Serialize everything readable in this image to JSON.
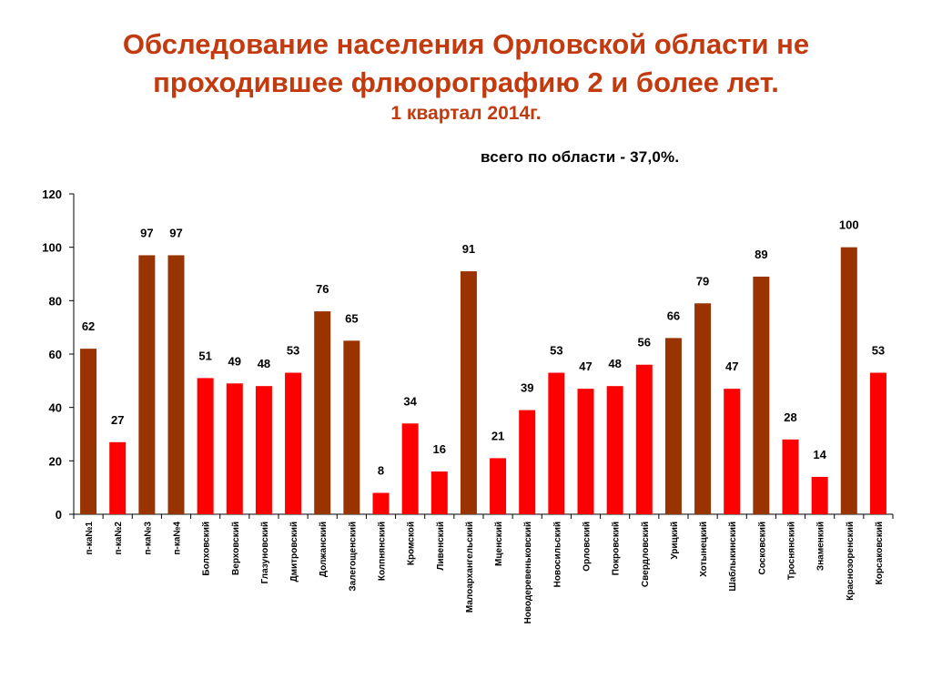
{
  "chart_data": {
    "type": "bar",
    "title_lines": [
      "Обследование населения Орловской области не",
      "проходившее флюорографию 2 и более лет."
    ],
    "subtitle": "1 квартал 2014г.",
    "annotation": "всего по области - 37,0%.",
    "categories": [
      "п-ка№1",
      "п-ка№2",
      "п-ка№3",
      "п-ка№4",
      "Болховский",
      "Верховский",
      "Глазуновский",
      "Дмитровский",
      "Должанский",
      "Залегощенский",
      "Колпнянский",
      "Кромской",
      "Ливенский",
      "Малоархангельский",
      "Мценский",
      "Новодеревеньковский",
      "Новосильский",
      "Орловский",
      "Покровский",
      "Свердловский",
      "Урицкий",
      "Хотынецкий",
      "Шаблыкинский",
      "Сосковский",
      "Троснянский",
      "Знаменкий",
      "Краснозоренский",
      "Корсаковский"
    ],
    "values": [
      62,
      27,
      97,
      97,
      51,
      49,
      48,
      53,
      76,
      65,
      8,
      34,
      16,
      91,
      21,
      39,
      53,
      47,
      48,
      56,
      66,
      79,
      47,
      89,
      28,
      14,
      100,
      53
    ],
    "value_labels": [
      "62",
      "27",
      "97",
      "97",
      "51",
      "49",
      "48",
      "53",
      "76",
      "65",
      "8",
      "34",
      "16",
      "91",
      "21",
      "39",
      "53",
      "47",
      "48",
      "56",
      "66",
      "79",
      "47",
      "89",
      "28",
      "14",
      "100",
      "53"
    ],
    "bar_tone": [
      "high",
      "low",
      "high",
      "high",
      "low",
      "low",
      "low",
      "low",
      "high",
      "high",
      "low",
      "low",
      "low",
      "high",
      "low",
      "low",
      "low",
      "low",
      "low",
      "low",
      "high",
      "high",
      "low",
      "high",
      "low",
      "low",
      "high",
      "low"
    ],
    "colors": {
      "high": "#993300",
      "low": "#ff0000",
      "title": "#c23a0e"
    },
    "ylim": [
      0,
      120
    ],
    "yticks": [
      "0",
      "20",
      "40",
      "60",
      "80",
      "100",
      "120"
    ],
    "grid": false,
    "legend": "none"
  }
}
